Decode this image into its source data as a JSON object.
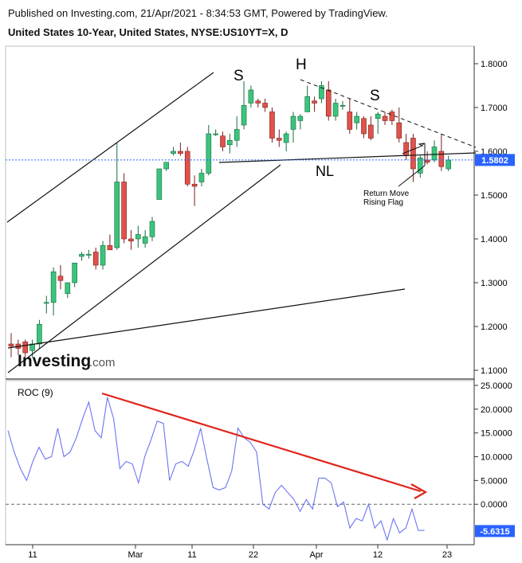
{
  "header": {
    "published": "Published on Investing.com, 21/Apr/2021 - 8:34:53 GMT, Powered by TradingView.",
    "title": "United States 10-Year, United States, NYSE:US10YT=X, D"
  },
  "colors": {
    "up": "#3cc47c",
    "down": "#e0524b",
    "upEdge": "#166b3e",
    "downEdge": "#7a1f1b",
    "roc": "#6b74f2",
    "trend": "#e0241b",
    "badge": "#2962ff"
  },
  "watermark": {
    "text": "Investing",
    "suffix": ".com"
  },
  "annotations": {
    "s_left": "S",
    "h": "H",
    "s_right": "S",
    "nl": "NL",
    "return_move": "Return Move",
    "rising_flag": "Rising Flag"
  },
  "roc_label": "ROC (9)",
  "chart_data": [
    {
      "type": "candlestick",
      "title": "United States 10-Year, United States, NYSE:US10YT=X, D",
      "ylim": [
        1.08,
        1.84
      ],
      "y_ticks": [
        "1.8000",
        "1.7000",
        "1.6000",
        "1.5000",
        "1.4000",
        "1.3000",
        "1.2000",
        "1.1000"
      ],
      "x_ticks": [
        "11",
        "Mar",
        "11",
        "22",
        "Apr",
        "12",
        "23"
      ],
      "last_value": "1.5802",
      "candles": [
        {
          "o": 1.16,
          "h": 1.185,
          "l": 1.13,
          "c": 1.155
        },
        {
          "o": 1.16,
          "h": 1.17,
          "l": 1.135,
          "c": 1.15
        },
        {
          "o": 1.165,
          "h": 1.17,
          "l": 1.13,
          "c": 1.14
        },
        {
          "o": 1.145,
          "h": 1.17,
          "l": 1.13,
          "c": 1.16
        },
        {
          "o": 1.16,
          "h": 1.215,
          "l": 1.15,
          "c": 1.205
        },
        {
          "o": 1.255,
          "h": 1.27,
          "l": 1.23,
          "c": 1.255
        },
        {
          "o": 1.255,
          "h": 1.335,
          "l": 1.225,
          "c": 1.325
        },
        {
          "o": 1.315,
          "h": 1.34,
          "l": 1.285,
          "c": 1.305
        },
        {
          "o": 1.275,
          "h": 1.3,
          "l": 1.265,
          "c": 1.3
        },
        {
          "o": 1.3,
          "h": 1.345,
          "l": 1.29,
          "c": 1.345
        },
        {
          "o": 1.36,
          "h": 1.37,
          "l": 1.35,
          "c": 1.365
        },
        {
          "o": 1.365,
          "h": 1.375,
          "l": 1.355,
          "c": 1.365
        },
        {
          "o": 1.37,
          "h": 1.38,
          "l": 1.33,
          "c": 1.34
        },
        {
          "o": 1.34,
          "h": 1.395,
          "l": 1.33,
          "c": 1.385
        },
        {
          "o": 1.385,
          "h": 1.41,
          "l": 1.375,
          "c": 1.375
        },
        {
          "o": 1.38,
          "h": 1.62,
          "l": 1.375,
          "c": 1.53
        },
        {
          "o": 1.53,
          "h": 1.55,
          "l": 1.39,
          "c": 1.4
        },
        {
          "o": 1.4,
          "h": 1.42,
          "l": 1.375,
          "c": 1.395
        },
        {
          "o": 1.4,
          "h": 1.43,
          "l": 1.38,
          "c": 1.41
        },
        {
          "o": 1.39,
          "h": 1.42,
          "l": 1.38,
          "c": 1.405
        },
        {
          "o": 1.405,
          "h": 1.45,
          "l": 1.395,
          "c": 1.44
        },
        {
          "o": 1.49,
          "h": 1.56,
          "l": 1.49,
          "c": 1.56
        },
        {
          "o": 1.56,
          "h": 1.575,
          "l": 1.555,
          "c": 1.575
        },
        {
          "o": 1.595,
          "h": 1.61,
          "l": 1.59,
          "c": 1.6
        },
        {
          "o": 1.6,
          "h": 1.62,
          "l": 1.59,
          "c": 1.595
        },
        {
          "o": 1.6,
          "h": 1.61,
          "l": 1.52,
          "c": 1.525
        },
        {
          "o": 1.525,
          "h": 1.545,
          "l": 1.475,
          "c": 1.52
        },
        {
          "o": 1.53,
          "h": 1.56,
          "l": 1.52,
          "c": 1.55
        },
        {
          "o": 1.55,
          "h": 1.66,
          "l": 1.545,
          "c": 1.64
        },
        {
          "o": 1.64,
          "h": 1.65,
          "l": 1.635,
          "c": 1.64
        },
        {
          "o": 1.635,
          "h": 1.645,
          "l": 1.6,
          "c": 1.61
        },
        {
          "o": 1.615,
          "h": 1.64,
          "l": 1.595,
          "c": 1.625
        },
        {
          "o": 1.625,
          "h": 1.68,
          "l": 1.61,
          "c": 1.65
        },
        {
          "o": 1.66,
          "h": 1.76,
          "l": 1.65,
          "c": 1.705
        },
        {
          "o": 1.71,
          "h": 1.75,
          "l": 1.7,
          "c": 1.74
        },
        {
          "o": 1.715,
          "h": 1.72,
          "l": 1.7,
          "c": 1.71
        },
        {
          "o": 1.71,
          "h": 1.72,
          "l": 1.69,
          "c": 1.7
        },
        {
          "o": 1.69,
          "h": 1.7,
          "l": 1.62,
          "c": 1.63
        },
        {
          "o": 1.63,
          "h": 1.65,
          "l": 1.61,
          "c": 1.625
        },
        {
          "o": 1.62,
          "h": 1.645,
          "l": 1.6,
          "c": 1.64
        },
        {
          "o": 1.65,
          "h": 1.69,
          "l": 1.62,
          "c": 1.68
        },
        {
          "o": 1.67,
          "h": 1.685,
          "l": 1.65,
          "c": 1.68
        },
        {
          "o": 1.69,
          "h": 1.75,
          "l": 1.69,
          "c": 1.725
        },
        {
          "o": 1.715,
          "h": 1.725,
          "l": 1.69,
          "c": 1.71
        },
        {
          "o": 1.72,
          "h": 1.76,
          "l": 1.71,
          "c": 1.75
        },
        {
          "o": 1.74,
          "h": 1.76,
          "l": 1.67,
          "c": 1.68
        },
        {
          "o": 1.68,
          "h": 1.72,
          "l": 1.67,
          "c": 1.71
        },
        {
          "o": 1.705,
          "h": 1.715,
          "l": 1.695,
          "c": 1.705
        },
        {
          "o": 1.69,
          "h": 1.72,
          "l": 1.64,
          "c": 1.65
        },
        {
          "o": 1.665,
          "h": 1.69,
          "l": 1.65,
          "c": 1.68
        },
        {
          "o": 1.675,
          "h": 1.68,
          "l": 1.63,
          "c": 1.64
        },
        {
          "o": 1.66,
          "h": 1.68,
          "l": 1.625,
          "c": 1.63
        },
        {
          "o": 1.675,
          "h": 1.69,
          "l": 1.64,
          "c": 1.685
        },
        {
          "o": 1.68,
          "h": 1.69,
          "l": 1.66,
          "c": 1.67
        },
        {
          "o": 1.69,
          "h": 1.695,
          "l": 1.66,
          "c": 1.67
        },
        {
          "o": 1.665,
          "h": 1.7,
          "l": 1.62,
          "c": 1.63
        },
        {
          "o": 1.62,
          "h": 1.64,
          "l": 1.58,
          "c": 1.59
        },
        {
          "o": 1.63,
          "h": 1.64,
          "l": 1.53,
          "c": 1.56
        },
        {
          "o": 1.55,
          "h": 1.59,
          "l": 1.54,
          "c": 1.585
        },
        {
          "o": 1.58,
          "h": 1.6,
          "l": 1.57,
          "c": 1.575
        },
        {
          "o": 1.58,
          "h": 1.625,
          "l": 1.575,
          "c": 1.61
        },
        {
          "o": 1.6,
          "h": 1.64,
          "l": 1.555,
          "c": 1.565
        },
        {
          "o": 1.56,
          "h": 1.59,
          "l": 1.555,
          "c": 1.58
        }
      ]
    },
    {
      "type": "line",
      "title": "ROC (9)",
      "ylim": [
        -8.5,
        26
      ],
      "y_ticks": [
        "25.0000",
        "20.0000",
        "15.0000",
        "10.0000",
        "5.0000",
        "0.0000"
      ],
      "last_value": "-5.6315",
      "values": [
        15.5,
        11,
        7.5,
        5,
        9,
        12,
        9.5,
        10,
        16,
        10,
        11,
        14,
        18,
        21.5,
        15.5,
        14,
        22.5,
        18,
        7.5,
        9,
        8.5,
        4.5,
        10,
        13.5,
        17.5,
        17,
        5,
        8.5,
        9,
        8,
        11.5,
        16,
        9.5,
        3.5,
        3,
        3.5,
        7,
        16,
        14,
        13,
        11,
        0,
        -1,
        2.5,
        4,
        2.5,
        1,
        -1.5,
        1,
        -1,
        5.5,
        5.5,
        4.5,
        -0.5,
        0.5,
        -5,
        -3,
        -3.5,
        0,
        -5,
        -3.5,
        -7.5,
        -3,
        -6,
        -5,
        -1,
        -5.5,
        -5.5
      ]
    }
  ]
}
